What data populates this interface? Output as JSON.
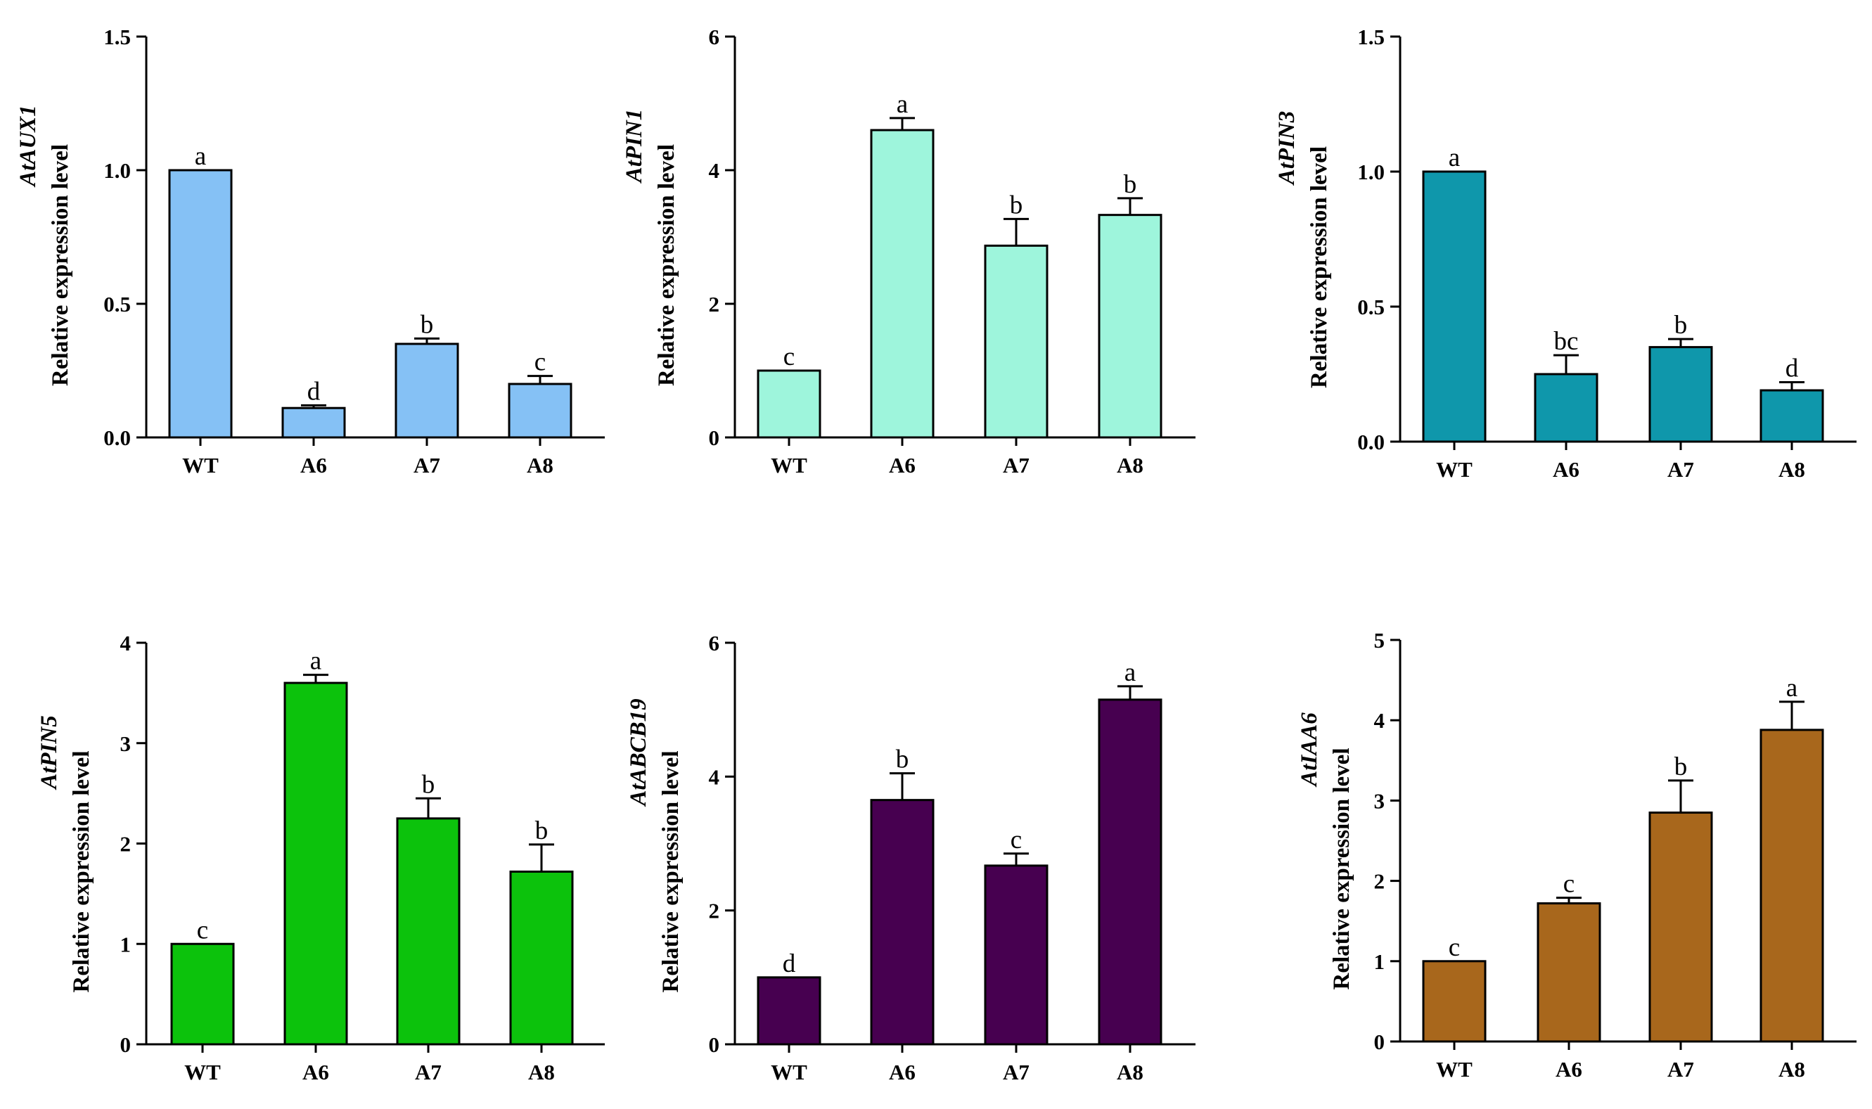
{
  "chart_data": [
    {
      "type": "bar",
      "gene": "AtAUX1",
      "ylabel": "Relative expression level",
      "categories": [
        "WT",
        "A6",
        "A7",
        "A8"
      ],
      "values": [
        1.0,
        0.11,
        0.35,
        0.2
      ],
      "errors": [
        0.0,
        0.01,
        0.02,
        0.03
      ],
      "significance": [
        "a",
        "d",
        "b",
        "c"
      ],
      "ylim": [
        0,
        1.5
      ],
      "yticks": [
        0.0,
        0.5,
        1.0,
        1.5
      ],
      "ytick_labels": [
        "0.0",
        "0.5",
        "1.0",
        "1.5"
      ],
      "color": "#85c1f5"
    },
    {
      "type": "bar",
      "gene": "AtPIN1",
      "ylabel": "Relative expression level",
      "categories": [
        "WT",
        "A6",
        "A7",
        "A8"
      ],
      "values": [
        1.0,
        4.6,
        2.87,
        3.33
      ],
      "errors": [
        0.0,
        0.18,
        0.4,
        0.25
      ],
      "significance": [
        "c",
        "a",
        "b",
        "b"
      ],
      "ylim": [
        0,
        6
      ],
      "yticks": [
        0,
        2,
        4,
        6
      ],
      "ytick_labels": [
        "0",
        "2",
        "4",
        "6"
      ],
      "color": "#9ef5dc"
    },
    {
      "type": "bar",
      "gene": "AtPIN3",
      "ylabel": "Relative expression level",
      "categories": [
        "WT",
        "A6",
        "A7",
        "A8"
      ],
      "values": [
        1.0,
        0.25,
        0.35,
        0.19
      ],
      "errors": [
        0.0,
        0.07,
        0.03,
        0.03
      ],
      "significance": [
        "a",
        "bc",
        "b",
        "d"
      ],
      "ylim": [
        0,
        1.5
      ],
      "yticks": [
        0.0,
        0.5,
        1.0,
        1.5
      ],
      "ytick_labels": [
        "0.0",
        "0.5",
        "1.0",
        "1.5"
      ],
      "color": "#0f97ab"
    },
    {
      "type": "bar",
      "gene": "AtPIN5",
      "ylabel": "Relative expression level",
      "categories": [
        "WT",
        "A6",
        "A7",
        "A8"
      ],
      "values": [
        1.0,
        3.6,
        2.25,
        1.72
      ],
      "errors": [
        0.0,
        0.08,
        0.2,
        0.27
      ],
      "significance": [
        "c",
        "a",
        "b",
        "b"
      ],
      "ylim": [
        0,
        4
      ],
      "yticks": [
        0,
        1,
        2,
        3,
        4
      ],
      "ytick_labels": [
        "0",
        "1",
        "2",
        "3",
        "4"
      ],
      "color": "#0cc20c"
    },
    {
      "type": "bar",
      "gene": "AtABCB19",
      "ylabel": "Relative expression level",
      "categories": [
        "WT",
        "A6",
        "A7",
        "A8"
      ],
      "values": [
        1.0,
        3.65,
        2.67,
        5.15
      ],
      "errors": [
        0.0,
        0.4,
        0.18,
        0.2
      ],
      "significance": [
        "d",
        "b",
        "c",
        "a"
      ],
      "ylim": [
        0,
        6
      ],
      "yticks": [
        0,
        2,
        4,
        6
      ],
      "ytick_labels": [
        "0",
        "2",
        "4",
        "6"
      ],
      "color": "#470050"
    },
    {
      "type": "bar",
      "gene": "AtIAA6",
      "ylabel": "Relative expression level",
      "categories": [
        "WT",
        "A6",
        "A7",
        "A8"
      ],
      "values": [
        1.0,
        1.72,
        2.85,
        3.88
      ],
      "errors": [
        0.0,
        0.07,
        0.4,
        0.35
      ],
      "significance": [
        "c",
        "c",
        "b",
        "a"
      ],
      "ylim": [
        0,
        5
      ],
      "yticks": [
        0,
        1,
        2,
        3,
        4,
        5
      ],
      "ytick_labels": [
        "0",
        "1",
        "2",
        "3",
        "4",
        "5"
      ],
      "color": "#a8671c"
    }
  ]
}
